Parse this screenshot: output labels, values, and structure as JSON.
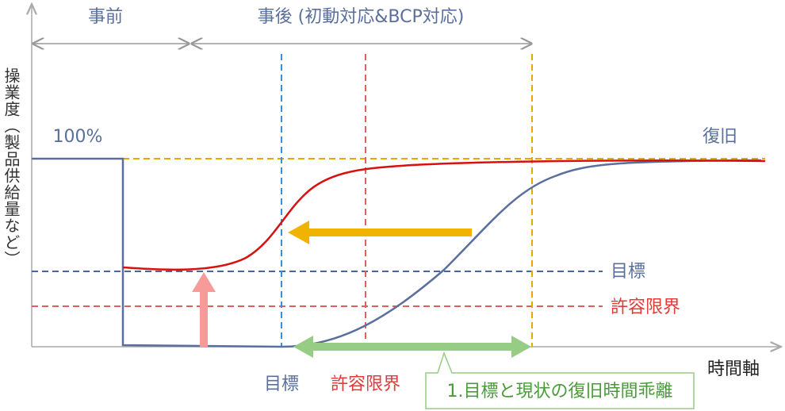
{
  "header": {
    "before": "事前",
    "after": "事後 (初動対応&BCP対応)"
  },
  "axes": {
    "y_label": "操業度（製品供給量など）",
    "x_label": "時間軸"
  },
  "curve_labels": {
    "full": "100%",
    "recovery": "復旧",
    "target": "目標",
    "tolerance": "許容限界"
  },
  "bottom_labels": {
    "target": "目標",
    "tolerance": "許容限界"
  },
  "callout": "1.目標と現状の復旧時間乖離"
}
